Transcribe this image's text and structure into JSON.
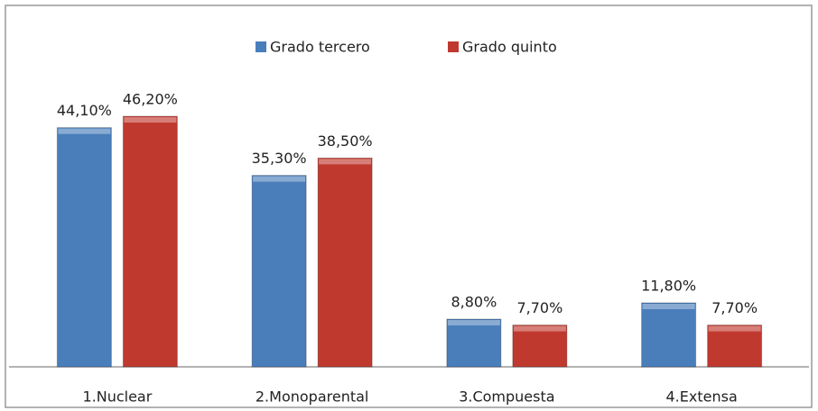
{
  "chart_data": {
    "type": "bar",
    "categories": [
      "1.Nuclear",
      "2.Monoparental",
      "3.Compuesta",
      "4.Extensa"
    ],
    "series": [
      {
        "name": "Grado tercero",
        "color": "#4a7ebb",
        "values": [
          44.1,
          35.3,
          8.8,
          11.8
        ],
        "value_labels": [
          "44,10%",
          "35,30%",
          "8,80%",
          "11,80%"
        ]
      },
      {
        "name": "Grado quinto",
        "color": "#c0392f",
        "values": [
          46.2,
          38.5,
          7.7,
          7.7
        ],
        "value_labels": [
          "46,20%",
          "38,50%",
          "7,70%",
          "7,70%"
        ]
      }
    ],
    "legend": "top"
  }
}
